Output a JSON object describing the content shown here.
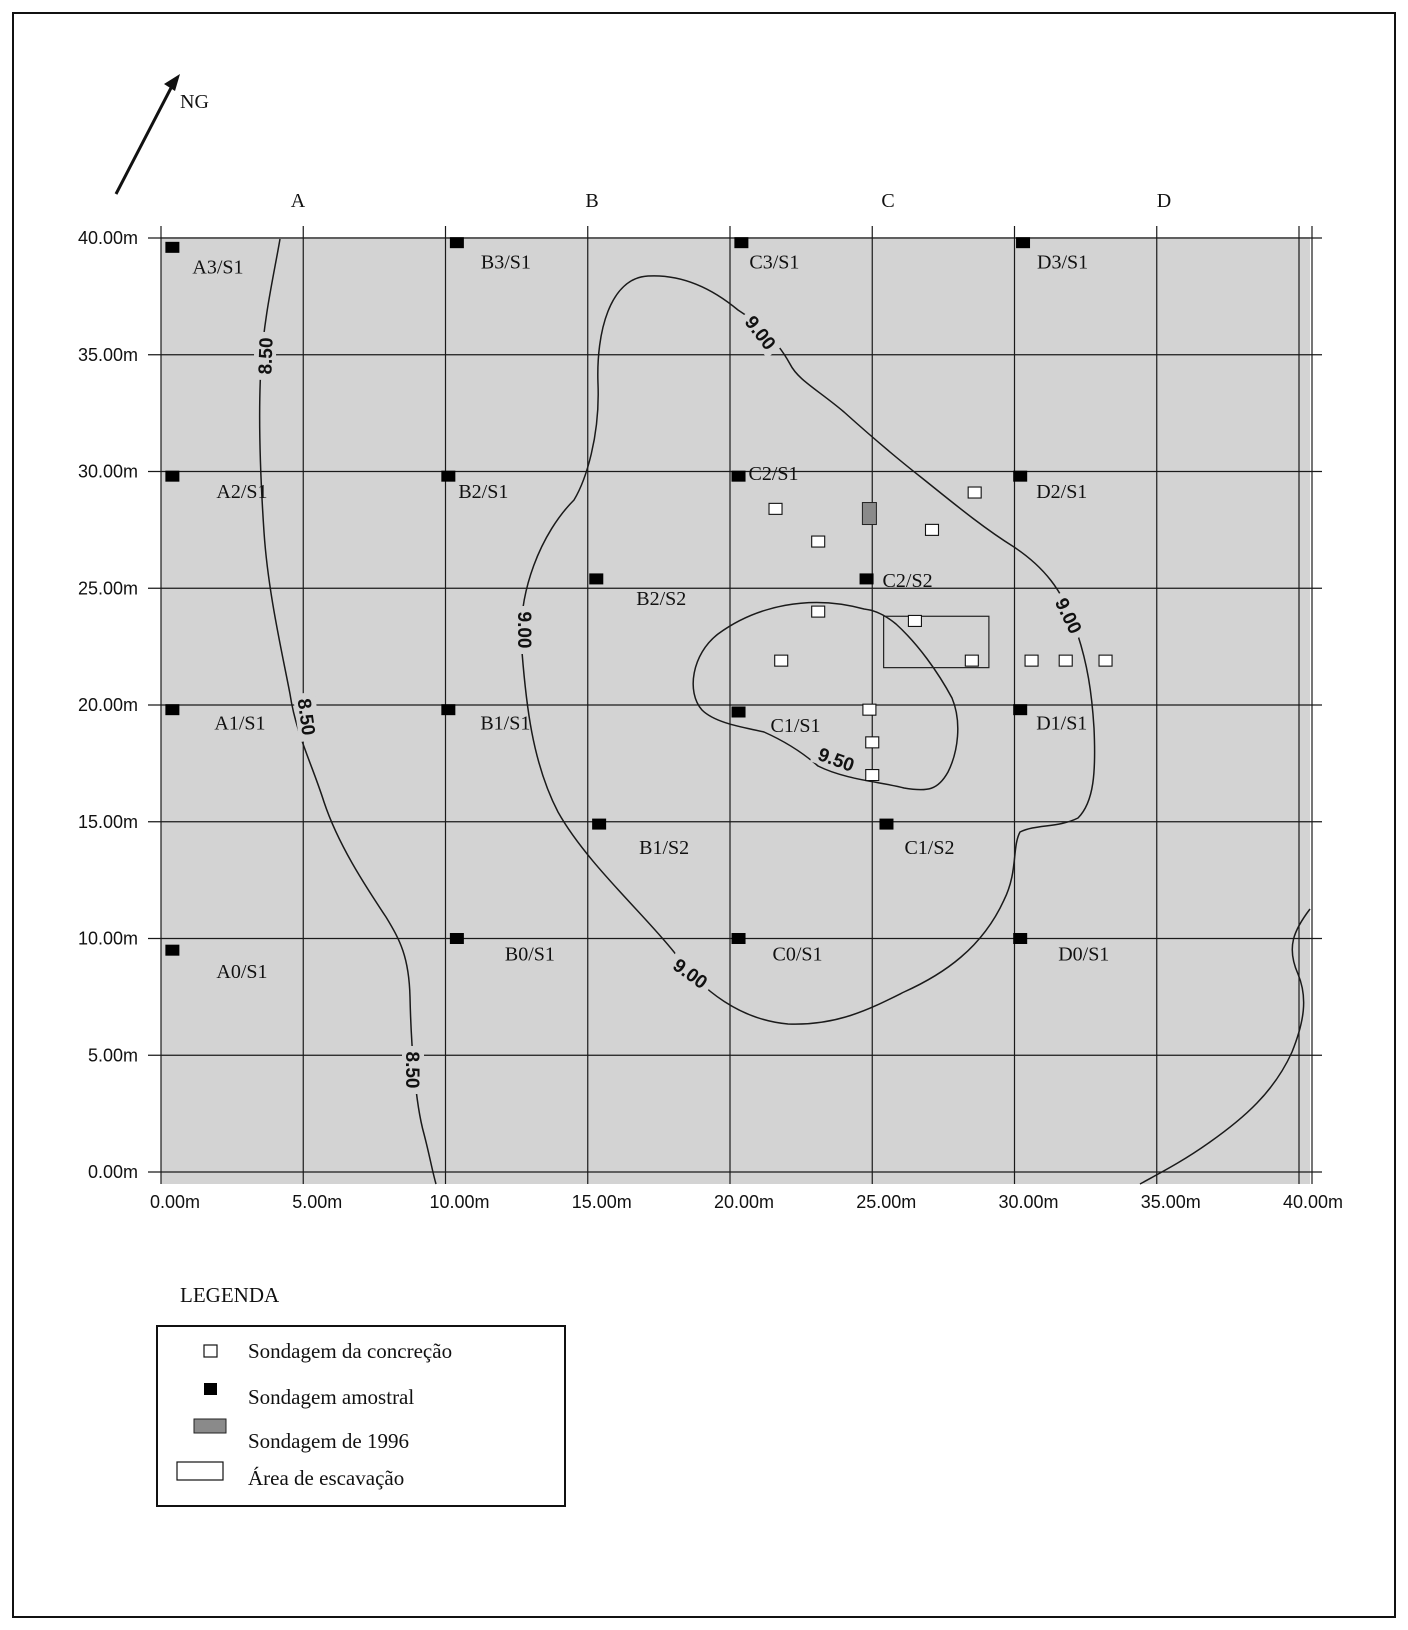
{
  "north_arrow": {
    "label": "NG"
  },
  "columns": [
    "A",
    "B",
    "C",
    "D"
  ],
  "y_ticks": [
    "40.00m",
    "35.00m",
    "30.00m",
    "25.00m",
    "20.00m",
    "15.00m",
    "10.00m",
    "5.00m",
    "0.00m"
  ],
  "x_ticks": [
    "0.00m",
    "5.00m",
    "10.00m",
    "15.00m",
    "20.00m",
    "25.00m",
    "30.00m",
    "35.00m",
    "40.00m"
  ],
  "contour_labels": [
    "8.50",
    "8.50",
    "8.50",
    "9.00",
    "9.00",
    "9.00",
    "9.00",
    "9.50"
  ],
  "sample_soundings": [
    {
      "label": "A3/S1",
      "x": 0.4,
      "y": 39.6
    },
    {
      "label": "B3/S1",
      "x": 10.4,
      "y": 39.8
    },
    {
      "label": "C3/S1",
      "x": 20.4,
      "y": 39.8
    },
    {
      "label": "D3/S1",
      "x": 30.3,
      "y": 39.8
    },
    {
      "label": "A2/S1",
      "x": 0.4,
      "y": 29.8
    },
    {
      "label": "B2/S1",
      "x": 10.1,
      "y": 29.8
    },
    {
      "label": "C2/S1",
      "x": 20.3,
      "y": 29.8
    },
    {
      "label": "D2/S1",
      "x": 30.2,
      "y": 29.8
    },
    {
      "label": "B2/S2",
      "x": 15.3,
      "y": 25.4
    },
    {
      "label": "C2/S2",
      "x": 24.8,
      "y": 25.4
    },
    {
      "label": "A1/S1",
      "x": 0.4,
      "y": 19.8
    },
    {
      "label": "B1/S1",
      "x": 10.1,
      "y": 19.8
    },
    {
      "label": "C1/S1",
      "x": 20.3,
      "y": 19.7
    },
    {
      "label": "D1/S1",
      "x": 30.2,
      "y": 19.8
    },
    {
      "label": "B1/S2",
      "x": 15.4,
      "y": 14.9
    },
    {
      "label": "C1/S2",
      "x": 25.5,
      "y": 14.9
    },
    {
      "label": "A0/S1",
      "x": 0.4,
      "y": 9.5
    },
    {
      "label": "B0/S1",
      "x": 10.4,
      "y": 10.0
    },
    {
      "label": "C0/S1",
      "x": 20.3,
      "y": 10.0
    },
    {
      "label": "D0/S1",
      "x": 30.2,
      "y": 10.0
    }
  ],
  "concretion_soundings": [
    {
      "x": 21.6,
      "y": 28.4
    },
    {
      "x": 23.1,
      "y": 27.0
    },
    {
      "x": 27.1,
      "y": 27.5
    },
    {
      "x": 28.6,
      "y": 29.1
    },
    {
      "x": 23.1,
      "y": 24.0
    },
    {
      "x": 26.5,
      "y": 23.6
    },
    {
      "x": 21.8,
      "y": 21.9
    },
    {
      "x": 28.5,
      "y": 21.9
    },
    {
      "x": 30.6,
      "y": 21.9
    },
    {
      "x": 31.8,
      "y": 21.9
    },
    {
      "x": 33.2,
      "y": 21.9
    },
    {
      "x": 24.9,
      "y": 19.8
    },
    {
      "x": 25.0,
      "y": 18.4
    },
    {
      "x": 25.0,
      "y": 17.0
    }
  ],
  "sounding_1996": {
    "x": 24.9,
    "y": 28.2
  },
  "excavation_area": {
    "x_min": 25.4,
    "x_max": 29.1,
    "y_min": 21.6,
    "y_max": 23.8
  },
  "legend": {
    "title": "LEGENDA",
    "items": [
      {
        "symbol": "open-square",
        "label": "Sondagem  da concreção"
      },
      {
        "symbol": "filled-square",
        "label": "Sondagem amostral"
      },
      {
        "symbol": "grey-rectangle",
        "label": "Sondagem de 1996"
      },
      {
        "symbol": "open-rectangle",
        "label": "Área de escavação"
      }
    ]
  },
  "colors": {
    "map_fill": "#d3d3d3",
    "grid_line": "#1a1a1a",
    "sample_marker": "#000000",
    "concretion_marker": "#ffffff",
    "sounding_1996": "#8a8a8a"
  }
}
